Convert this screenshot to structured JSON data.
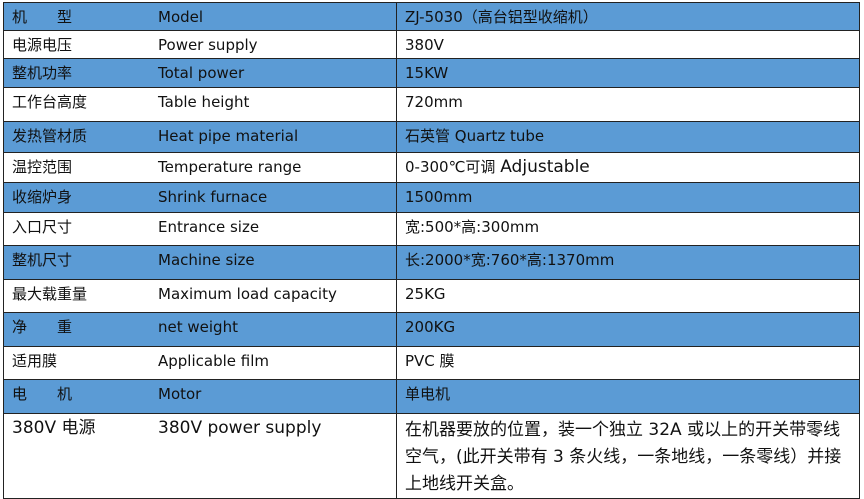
{
  "colors": {
    "row_blue": "#5b9bd5",
    "row_white": "#ffffff",
    "border": "#222222"
  },
  "rows": [
    {
      "cn": "机　　型",
      "en": "Model",
      "value": "ZJ-5030（高台铝型收缩机）",
      "shade": "blue"
    },
    {
      "cn": "电源电压",
      "en": "Power supply",
      "value": "380V",
      "shade": "white"
    },
    {
      "cn": "整机功率",
      "en": "Total power",
      "value": "15KW",
      "shade": "blue"
    },
    {
      "cn": "工作台高度",
      "en": "Table height",
      "value": "720mm",
      "shade": "white"
    },
    {
      "cn": "发热管材质",
      "en": "Heat pipe material",
      "value": "石英管  Quartz tube",
      "shade": "blue"
    },
    {
      "cn": "温控范围",
      "en": "Temperature range",
      "value": "0-300℃可调",
      "value_en": "Adjustable",
      "shade": "white"
    },
    {
      "cn": "收缩炉身",
      "en": "Shrink furnace",
      "value": "1500mm",
      "shade": "blue"
    },
    {
      "cn": "入口尺寸",
      "en": "Entrance size",
      "value": "宽:500*高:300mm",
      "shade": "white"
    },
    {
      "cn": "整机尺寸",
      "en": "Machine size",
      "value": "长:2000*宽:760*高:1370mm",
      "shade": "blue"
    },
    {
      "cn": "最大载重量",
      "en": "Maximum load capacity",
      "value": "25KG",
      "shade": "white"
    },
    {
      "cn": "净　　重",
      "en": "net weight",
      "value": "200KG",
      "shade": "blue"
    },
    {
      "cn": "适用膜",
      "en": "Applicable film",
      "value": "PVC 膜",
      "shade": "white"
    },
    {
      "cn": "电　　机",
      "en": "Motor",
      "value": "单电机",
      "shade": "blue"
    },
    {
      "cn": "380V 电源",
      "en": "380V power supply",
      "value": "在机器要放的位置，装一个独立 32A 或以上的开关带零线空气，(此开关带有 3 条火线，一条地线，一条零线）并接上地线开关盒。",
      "shade": "white"
    }
  ]
}
